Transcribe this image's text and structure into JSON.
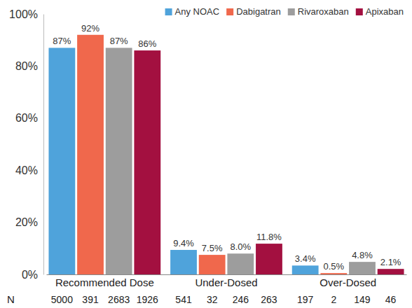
{
  "chart_data": {
    "type": "bar",
    "categories": [
      "Recommended Dose",
      "Under-Dosed",
      "Over-Dosed"
    ],
    "series": [
      {
        "name": "Any NOAC",
        "color": "#4fa3db",
        "values": [
          87,
          9.4,
          3.4
        ],
        "value_labels": [
          "87%",
          "9.4%",
          "3.4%"
        ],
        "counts": [
          5000,
          541,
          197
        ]
      },
      {
        "name": "Dabigatran",
        "color": "#f0684c",
        "values": [
          92,
          7.5,
          0.5
        ],
        "value_labels": [
          "92%",
          "7.5%",
          "0.5%"
        ],
        "counts": [
          391,
          32,
          2
        ]
      },
      {
        "name": "Rivaroxaban",
        "color": "#9d9d9d",
        "values": [
          87,
          8.0,
          4.8
        ],
        "value_labels": [
          "87%",
          "8.0%",
          "4.8%"
        ],
        "counts": [
          2683,
          246,
          149
        ]
      },
      {
        "name": "Apixaban",
        "color": "#a31040",
        "values": [
          86,
          11.8,
          2.1
        ],
        "value_labels": [
          "86%",
          "11.8%",
          "2.1%"
        ],
        "counts": [
          1926,
          263,
          46
        ]
      }
    ],
    "counts_label": "N",
    "ylim": [
      0,
      100
    ],
    "yticks": [
      {
        "value": 0,
        "label": "0%"
      },
      {
        "value": 20,
        "label": "20%"
      },
      {
        "value": 40,
        "label": "40%"
      },
      {
        "value": 60,
        "label": "60%"
      },
      {
        "value": 80,
        "label": "80%"
      },
      {
        "value": 100,
        "label": "100%"
      }
    ],
    "grid": false,
    "legend": "top-right",
    "data_labels": true
  }
}
